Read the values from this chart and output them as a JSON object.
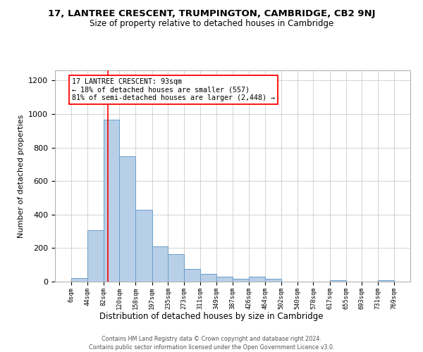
{
  "title": "17, LANTREE CRESCENT, TRUMPINGTON, CAMBRIDGE, CB2 9NJ",
  "subtitle": "Size of property relative to detached houses in Cambridge",
  "xlabel": "Distribution of detached houses by size in Cambridge",
  "ylabel": "Number of detached properties",
  "bar_color": "#b8cfe8",
  "bar_edge_color": "#6a9fc8",
  "bg_color": "#ffffff",
  "grid_color": "#cccccc",
  "vline_x": 93,
  "vline_color": "red",
  "annotation_lines": [
    "17 LANTREE CRESCENT: 93sqm",
    "← 18% of detached houses are smaller (557)",
    "81% of semi-detached houses are larger (2,448) →"
  ],
  "bin_edges": [
    6,
    44,
    82,
    120,
    158,
    197,
    235,
    273,
    311,
    349,
    387,
    426,
    464,
    502,
    540,
    578,
    617,
    655,
    693,
    731,
    769
  ],
  "bar_heights": [
    20,
    305,
    965,
    748,
    430,
    210,
    165,
    75,
    45,
    30,
    15,
    30,
    15,
    0,
    0,
    0,
    10,
    0,
    0,
    10
  ],
  "ylim": [
    0,
    1260
  ],
  "yticks": [
    0,
    200,
    400,
    600,
    800,
    1000,
    1200
  ],
  "footer_line1": "Contains HM Land Registry data © Crown copyright and database right 2024.",
  "footer_line2": "Contains public sector information licensed under the Open Government Licence v3.0."
}
